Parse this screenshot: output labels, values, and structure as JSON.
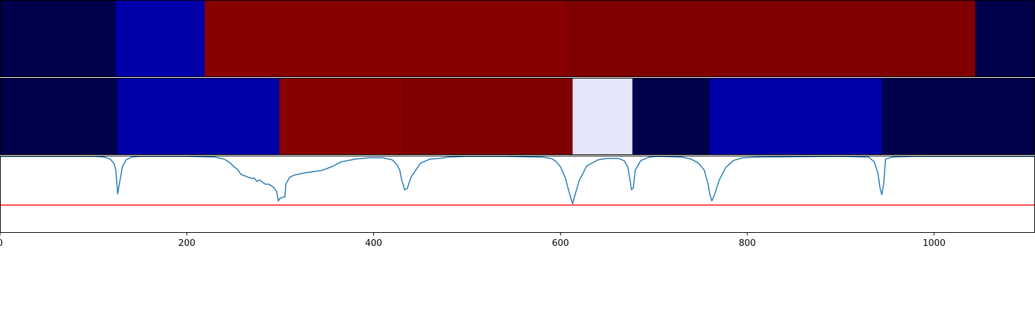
{
  "chart_data": [
    {
      "type": "heatmap",
      "xlim": [
        0,
        1108
      ],
      "segments": [
        {
          "x0": 0,
          "x1": 124,
          "color": "#00004c"
        },
        {
          "x0": 124,
          "x1": 219,
          "color": "#0000aa"
        },
        {
          "x0": 219,
          "x1": 604,
          "color": "#880000"
        },
        {
          "x0": 604,
          "x1": 1044,
          "color": "#800000"
        },
        {
          "x0": 1044,
          "x1": 1108,
          "color": "#00004c"
        }
      ]
    },
    {
      "type": "heatmap",
      "xlim": [
        0,
        1108
      ],
      "segments": [
        {
          "x0": 0,
          "x1": 126,
          "color": "#00004c"
        },
        {
          "x0": 126,
          "x1": 299,
          "color": "#0000aa"
        },
        {
          "x0": 299,
          "x1": 431,
          "color": "#880000"
        },
        {
          "x0": 431,
          "x1": 613,
          "color": "#800000"
        },
        {
          "x0": 613,
          "x1": 677,
          "color": "#e6e6fa"
        },
        {
          "x0": 677,
          "x1": 760,
          "color": "#00004c"
        },
        {
          "x0": 760,
          "x1": 944,
          "color": "#0000aa"
        },
        {
          "x0": 944,
          "x1": 1108,
          "color": "#00004c"
        }
      ]
    },
    {
      "type": "line",
      "xlim": [
        0,
        1108
      ],
      "ylim": [
        -0.1,
        1.0
      ],
      "x_ticks": [
        0,
        200,
        400,
        600,
        800,
        1000
      ],
      "series": [
        {
          "color": "#1f77b4",
          "x": [
            0,
            100,
            112,
            118,
            122,
            124,
            126,
            128,
            131,
            135,
            141,
            150,
            200,
            230,
            240,
            245,
            250,
            255,
            258,
            262,
            266,
            270,
            272,
            275,
            278,
            280,
            284,
            288,
            290,
            293,
            296,
            298,
            300,
            305,
            306,
            310,
            315,
            325,
            335,
            345,
            355,
            365,
            380,
            395,
            410,
            420,
            425,
            428,
            430,
            432,
            433,
            436,
            440,
            450,
            460,
            470,
            480,
            500,
            540,
            580,
            590,
            595,
            600,
            605,
            608,
            611,
            613,
            615,
            620,
            628,
            640,
            650,
            662,
            668,
            672,
            674,
            676,
            678,
            680,
            686,
            695,
            705,
            730,
            740,
            748,
            754,
            758,
            760,
            762,
            765,
            770,
            777,
            785,
            795,
            810,
            900,
            930,
            936,
            940,
            942,
            944,
            946,
            948,
            955,
            980,
            1108
          ],
          "y": [
            1.0,
            1.0,
            0.99,
            0.96,
            0.9,
            0.8,
            0.46,
            0.62,
            0.85,
            0.95,
            0.99,
            1.0,
            1.0,
            0.99,
            0.96,
            0.92,
            0.86,
            0.8,
            0.74,
            0.72,
            0.7,
            0.68,
            0.69,
            0.64,
            0.66,
            0.64,
            0.6,
            0.6,
            0.58,
            0.55,
            0.5,
            0.36,
            0.4,
            0.42,
            0.6,
            0.7,
            0.73,
            0.76,
            0.78,
            0.8,
            0.85,
            0.92,
            0.96,
            0.98,
            0.98,
            0.95,
            0.88,
            0.8,
            0.66,
            0.58,
            0.52,
            0.54,
            0.7,
            0.9,
            0.96,
            0.97,
            0.99,
            1.0,
            1.0,
            0.99,
            0.97,
            0.93,
            0.85,
            0.7,
            0.55,
            0.4,
            0.32,
            0.42,
            0.65,
            0.86,
            0.95,
            0.97,
            0.97,
            0.94,
            0.85,
            0.7,
            0.52,
            0.55,
            0.8,
            0.94,
            0.99,
            1.0,
            0.99,
            0.96,
            0.9,
            0.8,
            0.6,
            0.45,
            0.36,
            0.45,
            0.66,
            0.84,
            0.94,
            0.98,
            0.99,
            1.0,
            0.99,
            0.92,
            0.75,
            0.55,
            0.45,
            0.6,
            0.96,
            0.99,
            1.0,
            1.0
          ]
        }
      ],
      "hline": {
        "y": 0.3,
        "color": "#ff0000"
      }
    }
  ]
}
